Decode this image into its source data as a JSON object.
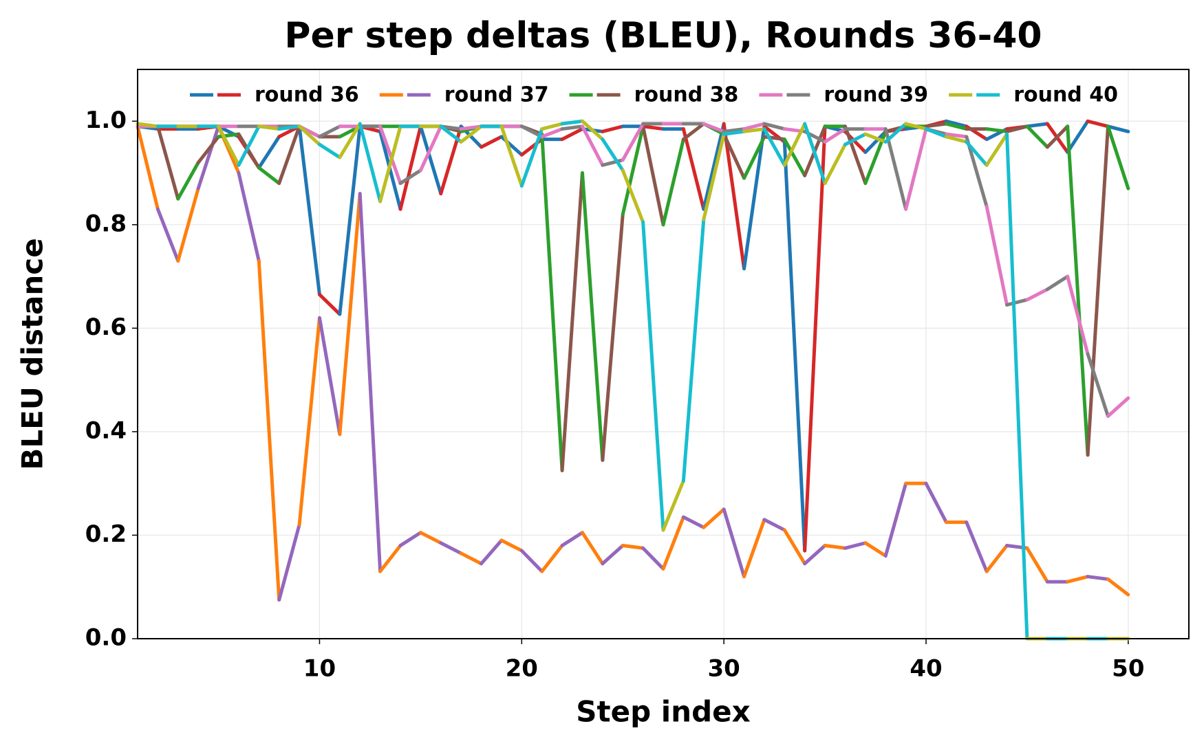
{
  "chart_data": {
    "type": "line",
    "title": "Per step deltas (BLEU), Rounds 36-40",
    "x_label": "Step index",
    "y_label": "BLEU distance",
    "x": [
      1,
      2,
      3,
      4,
      5,
      6,
      7,
      8,
      9,
      10,
      11,
      12,
      13,
      14,
      15,
      16,
      17,
      18,
      19,
      20,
      21,
      22,
      23,
      24,
      25,
      26,
      27,
      28,
      29,
      30,
      31,
      32,
      33,
      34,
      35,
      36,
      37,
      38,
      39,
      40,
      41,
      42,
      43,
      44,
      45,
      46,
      47,
      48,
      49,
      50
    ],
    "series": [
      {
        "name": "round 36",
        "colors": [
          "#1f77b4",
          "#d62728"
        ],
        "values": [
          0.99,
          0.985,
          0.985,
          0.985,
          0.99,
          0.97,
          0.91,
          0.97,
          0.99,
          0.665,
          0.627,
          0.99,
          0.98,
          0.83,
          0.99,
          0.86,
          0.99,
          0.95,
          0.97,
          0.935,
          0.965,
          0.965,
          0.985,
          0.98,
          0.99,
          0.99,
          0.985,
          0.985,
          0.83,
          0.995,
          0.715,
          0.99,
          0.96,
          0.17,
          0.99,
          0.98,
          0.94,
          0.98,
          0.985,
          0.99,
          1.0,
          0.99,
          0.965,
          0.985,
          0.99,
          0.995,
          0.94,
          1.0,
          0.99,
          0.98
        ]
      },
      {
        "name": "round 37",
        "colors": [
          "#ff7f0e",
          "#9467bd"
        ],
        "values": [
          0.99,
          0.83,
          0.73,
          0.87,
          0.99,
          0.9,
          0.73,
          0.075,
          0.22,
          0.62,
          0.395,
          0.86,
          0.13,
          0.18,
          0.205,
          0.185,
          0.165,
          0.145,
          0.19,
          0.17,
          0.13,
          0.18,
          0.205,
          0.145,
          0.18,
          0.175,
          0.135,
          0.235,
          0.215,
          0.25,
          0.12,
          0.23,
          0.21,
          0.145,
          0.18,
          0.175,
          0.185,
          0.16,
          0.3,
          0.3,
          0.225,
          0.225,
          0.13,
          0.18,
          0.175,
          0.11,
          0.11,
          0.12,
          0.115,
          0.085
        ]
      },
      {
        "name": "round 38",
        "colors": [
          "#2ca02c",
          "#8c564b"
        ],
        "values": [
          0.99,
          0.99,
          0.85,
          0.92,
          0.97,
          0.975,
          0.91,
          0.88,
          0.99,
          0.97,
          0.97,
          0.99,
          0.99,
          0.99,
          0.99,
          0.99,
          0.98,
          0.99,
          0.99,
          0.99,
          0.975,
          0.325,
          0.9,
          0.345,
          0.82,
          0.99,
          0.8,
          0.965,
          0.995,
          0.975,
          0.89,
          0.97,
          0.965,
          0.895,
          0.99,
          0.99,
          0.88,
          0.98,
          0.99,
          0.99,
          0.995,
          0.985,
          0.985,
          0.98,
          0.99,
          0.95,
          0.99,
          0.355,
          0.99,
          0.87
        ]
      },
      {
        "name": "round 39",
        "colors": [
          "#e377c2",
          "#7f7f7f"
        ],
        "values": [
          0.99,
          0.99,
          0.99,
          0.99,
          0.99,
          0.99,
          0.99,
          0.99,
          0.99,
          0.97,
          0.99,
          0.99,
          0.99,
          0.88,
          0.905,
          0.99,
          0.985,
          0.99,
          0.99,
          0.99,
          0.97,
          0.985,
          0.99,
          0.915,
          0.925,
          0.995,
          0.995,
          0.995,
          0.995,
          0.98,
          0.985,
          0.995,
          0.985,
          0.98,
          0.96,
          0.985,
          0.985,
          0.985,
          0.83,
          0.985,
          0.975,
          0.97,
          0.835,
          0.645,
          0.655,
          0.675,
          0.7,
          0.55,
          0.43,
          0.465
        ]
      },
      {
        "name": "round 40",
        "colors": [
          "#bcbd22",
          "#17becf"
        ],
        "values": [
          0.995,
          0.99,
          0.99,
          0.99,
          0.99,
          0.915,
          0.99,
          0.985,
          0.99,
          0.955,
          0.93,
          0.995,
          0.845,
          0.99,
          0.99,
          0.99,
          0.96,
          0.99,
          0.99,
          0.875,
          0.985,
          0.995,
          1.0,
          0.965,
          0.905,
          0.805,
          0.21,
          0.305,
          0.81,
          0.975,
          0.98,
          0.985,
          0.915,
          0.995,
          0.88,
          0.955,
          0.975,
          0.96,
          0.995,
          0.985,
          0.97,
          0.96,
          0.915,
          0.975,
          0,
          0,
          0,
          0,
          0,
          0
        ]
      }
    ],
    "xlim": [
      1,
      53
    ],
    "ylim": [
      0,
      1.1
    ],
    "xticks": [
      10,
      20,
      30,
      40,
      50
    ],
    "yticks": [
      {
        "value": 0,
        "label": "0.0"
      },
      {
        "value": 0.2,
        "label": "0.2"
      },
      {
        "value": 0.4,
        "label": "0.4"
      },
      {
        "value": 0.6,
        "label": "0.6"
      },
      {
        "value": 0.8,
        "label": "0.8"
      },
      {
        "value": 1,
        "label": "1.0"
      }
    ],
    "grid": true,
    "legend": "top"
  }
}
